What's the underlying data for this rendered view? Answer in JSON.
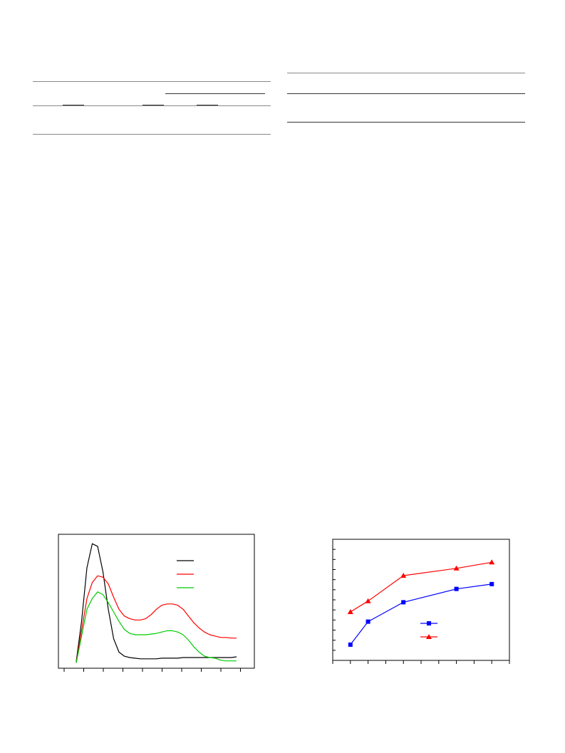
{
  "page": {
    "left_table": {
      "rows": []
    },
    "right_table": {
      "rows": []
    }
  },
  "chart_data": [
    {
      "type": "line",
      "title": "",
      "xlabel": "",
      "ylabel": "",
      "grid": false,
      "legend_position": "top-right",
      "x": [
        0,
        0.3,
        0.6,
        0.9,
        1.2,
        1.5,
        1.8,
        2.1,
        2.4,
        2.7,
        3.0,
        3.3,
        3.6,
        3.9,
        4.2,
        4.5,
        4.8,
        5.1,
        5.4,
        5.7,
        6.0,
        6.3,
        6.6,
        6.9,
        7.2,
        7.5,
        7.8,
        8.1,
        8.4,
        8.7,
        9.0
      ],
      "xlim": [
        -1,
        10
      ],
      "ylim": [
        0,
        100
      ],
      "series": [
        {
          "color": "#000000",
          "values": [
            5,
            35,
            75,
            93,
            91,
            72,
            44,
            22,
            12,
            9,
            8,
            7.5,
            7,
            7,
            7,
            7,
            7.5,
            7.5,
            7.5,
            7.5,
            8,
            8,
            8,
            8,
            8,
            8,
            8,
            8,
            8,
            8,
            8.5
          ]
        },
        {
          "color": "#ff0000",
          "values": [
            4,
            28,
            52,
            64,
            69,
            68,
            63,
            53,
            44,
            39,
            37,
            36,
            36,
            37,
            40,
            44,
            47,
            48,
            48,
            47,
            44,
            39,
            34,
            30,
            27,
            25,
            24,
            23,
            23,
            22.5,
            22.5
          ]
        },
        {
          "color": "#00cc00",
          "values": [
            4,
            24,
            44,
            52,
            57,
            55,
            49,
            42,
            35,
            29,
            26,
            25,
            25,
            25,
            25.5,
            26,
            27,
            28,
            28,
            27,
            25,
            21,
            16,
            12,
            9,
            8,
            7.5,
            6,
            5.5,
            5.5,
            5.5
          ]
        }
      ]
    },
    {
      "type": "line",
      "title": "",
      "xlabel": "",
      "ylabel": "",
      "grid": false,
      "legend_position": "center-right",
      "x": [
        1,
        2,
        4,
        7,
        9
      ],
      "xlim": [
        0,
        10
      ],
      "ylim": [
        0,
        10
      ],
      "series": [
        {
          "color": "#0000ff",
          "marker": "square",
          "values": [
            1.3,
            3.2,
            4.8,
            5.9,
            6.3
          ]
        },
        {
          "color": "#ff0000",
          "marker": "triangle",
          "values": [
            4.0,
            4.9,
            7.0,
            7.6,
            8.1
          ]
        }
      ]
    }
  ]
}
